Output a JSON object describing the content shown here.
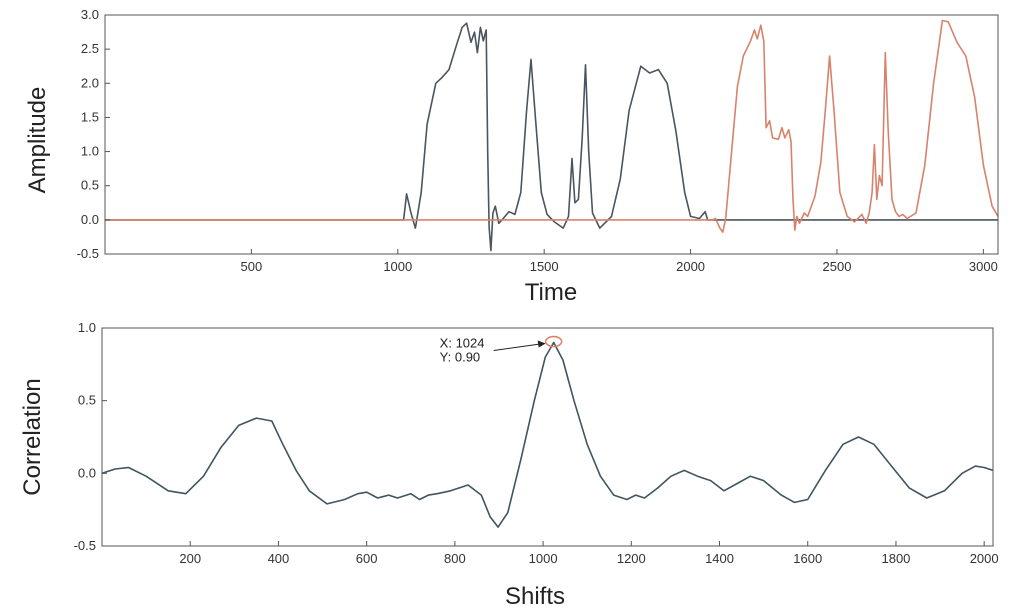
{
  "chart_data": [
    {
      "type": "line",
      "xlabel": "Time",
      "ylabel": "Amplitude",
      "xlim": [
        0,
        3050
      ],
      "ylim": [
        -0.5,
        3.0
      ],
      "xticks": [
        500,
        1000,
        1500,
        2000,
        2500,
        3000
      ],
      "yticks": [
        -0.5,
        0.0,
        0.5,
        1.0,
        1.5,
        2.0,
        2.5,
        3.0
      ],
      "ytick_labels": [
        "-0.5",
        "0.0",
        "0.5",
        "1.0",
        "1.5",
        "2.0",
        "2.5",
        "3.0"
      ],
      "grid": false,
      "series": [
        {
          "color": "#4a5560",
          "points": [
            [
              0,
              0
            ],
            [
              1020,
              0
            ],
            [
              1030,
              0.38
            ],
            [
              1045,
              0.1
            ],
            [
              1060,
              -0.12
            ],
            [
              1080,
              0.4
            ],
            [
              1100,
              1.4
            ],
            [
              1130,
              2.0
            ],
            [
              1150,
              2.08
            ],
            [
              1175,
              2.2
            ],
            [
              1200,
              2.55
            ],
            [
              1220,
              2.82
            ],
            [
              1235,
              2.88
            ],
            [
              1250,
              2.6
            ],
            [
              1262,
              2.75
            ],
            [
              1272,
              2.45
            ],
            [
              1282,
              2.82
            ],
            [
              1292,
              2.62
            ],
            [
              1302,
              2.78
            ],
            [
              1307,
              1.0
            ],
            [
              1312,
              -0.1
            ],
            [
              1318,
              -0.45
            ],
            [
              1325,
              0.1
            ],
            [
              1333,
              0.2
            ],
            [
              1345,
              -0.05
            ],
            [
              1360,
              0.02
            ],
            [
              1380,
              0.12
            ],
            [
              1400,
              0.08
            ],
            [
              1420,
              0.4
            ],
            [
              1440,
              1.6
            ],
            [
              1455,
              2.35
            ],
            [
              1470,
              1.5
            ],
            [
              1490,
              0.4
            ],
            [
              1510,
              0.08
            ],
            [
              1535,
              -0.03
            ],
            [
              1565,
              -0.12
            ],
            [
              1583,
              0.05
            ],
            [
              1595,
              0.9
            ],
            [
              1605,
              0.25
            ],
            [
              1617,
              0.3
            ],
            [
              1630,
              1.2
            ],
            [
              1641,
              2.27
            ],
            [
              1652,
              1.0
            ],
            [
              1665,
              0.1
            ],
            [
              1690,
              -0.12
            ],
            [
              1730,
              0.05
            ],
            [
              1760,
              0.6
            ],
            [
              1790,
              1.6
            ],
            [
              1830,
              2.25
            ],
            [
              1860,
              2.15
            ],
            [
              1890,
              2.2
            ],
            [
              1920,
              2.0
            ],
            [
              1950,
              1.3
            ],
            [
              1980,
              0.4
            ],
            [
              2000,
              0.05
            ],
            [
              2030,
              0.02
            ],
            [
              2050,
              0.12
            ],
            [
              2058,
              0.0
            ],
            [
              3050,
              0.0
            ]
          ]
        },
        {
          "color": "#d9826b",
          "points": [
            [
              0,
              0
            ],
            [
              2075,
              0.0
            ],
            [
              2085,
              0.02
            ],
            [
              2100,
              -0.12
            ],
            [
              2110,
              -0.18
            ],
            [
              2120,
              0.02
            ],
            [
              2140,
              1.0
            ],
            [
              2160,
              1.95
            ],
            [
              2180,
              2.4
            ],
            [
              2205,
              2.62
            ],
            [
              2218,
              2.78
            ],
            [
              2228,
              2.65
            ],
            [
              2240,
              2.85
            ],
            [
              2250,
              2.62
            ],
            [
              2258,
              1.35
            ],
            [
              2270,
              1.45
            ],
            [
              2280,
              1.2
            ],
            [
              2300,
              1.18
            ],
            [
              2312,
              1.35
            ],
            [
              2322,
              1.2
            ],
            [
              2335,
              1.32
            ],
            [
              2343,
              1.15
            ],
            [
              2350,
              0.3
            ],
            [
              2356,
              -0.15
            ],
            [
              2363,
              0.05
            ],
            [
              2372,
              -0.05
            ],
            [
              2388,
              0.1
            ],
            [
              2400,
              0.05
            ],
            [
              2425,
              0.35
            ],
            [
              2445,
              0.85
            ],
            [
              2460,
              1.6
            ],
            [
              2475,
              2.4
            ],
            [
              2490,
              1.6
            ],
            [
              2510,
              0.4
            ],
            [
              2535,
              0.05
            ],
            [
              2560,
              -0.03
            ],
            [
              2585,
              0.08
            ],
            [
              2600,
              -0.05
            ],
            [
              2610,
              0.1
            ],
            [
              2620,
              0.4
            ],
            [
              2628,
              1.1
            ],
            [
              2636,
              0.3
            ],
            [
              2645,
              0.65
            ],
            [
              2654,
              0.5
            ],
            [
              2665,
              2.45
            ],
            [
              2675,
              1.3
            ],
            [
              2688,
              0.3
            ],
            [
              2700,
              0.12
            ],
            [
              2712,
              0.05
            ],
            [
              2725,
              0.08
            ],
            [
              2740,
              0.02
            ],
            [
              2770,
              0.1
            ],
            [
              2800,
              0.8
            ],
            [
              2830,
              2.0
            ],
            [
              2860,
              2.92
            ],
            [
              2880,
              2.9
            ],
            [
              2910,
              2.6
            ],
            [
              2940,
              2.4
            ],
            [
              2970,
              1.8
            ],
            [
              3000,
              0.8
            ],
            [
              3030,
              0.2
            ],
            [
              3050,
              0.05
            ]
          ]
        }
      ]
    },
    {
      "type": "line",
      "xlabel": "Shifts",
      "ylabel": "Correlation",
      "xlim": [
        0,
        2020
      ],
      "ylim": [
        -0.5,
        1.0
      ],
      "xticks": [
        200,
        400,
        600,
        800,
        1000,
        1200,
        1400,
        1600,
        1800,
        2000
      ],
      "yticks": [
        -0.5,
        0.0,
        0.5,
        1.0
      ],
      "ytick_labels": [
        "-0.5",
        "0.0",
        "0.5",
        "1.0"
      ],
      "grid": false,
      "annotation": {
        "x_label": "X: 1024",
        "y_label": "Y:  0.90",
        "x": 1024,
        "y": 0.9
      },
      "series": [
        {
          "color": "#3f5560",
          "points": [
            [
              0,
              0.0
            ],
            [
              30,
              0.03
            ],
            [
              60,
              0.04
            ],
            [
              100,
              -0.02
            ],
            [
              150,
              -0.12
            ],
            [
              190,
              -0.14
            ],
            [
              230,
              -0.02
            ],
            [
              270,
              0.18
            ],
            [
              310,
              0.33
            ],
            [
              350,
              0.38
            ],
            [
              385,
              0.36
            ],
            [
              410,
              0.2
            ],
            [
              440,
              0.02
            ],
            [
              470,
              -0.12
            ],
            [
              510,
              -0.21
            ],
            [
              550,
              -0.18
            ],
            [
              580,
              -0.14
            ],
            [
              600,
              -0.13
            ],
            [
              625,
              -0.17
            ],
            [
              650,
              -0.15
            ],
            [
              670,
              -0.17
            ],
            [
              700,
              -0.14
            ],
            [
              720,
              -0.18
            ],
            [
              740,
              -0.15
            ],
            [
              760,
              -0.14
            ],
            [
              790,
              -0.12
            ],
            [
              830,
              -0.08
            ],
            [
              860,
              -0.15
            ],
            [
              880,
              -0.3
            ],
            [
              898,
              -0.37
            ],
            [
              920,
              -0.27
            ],
            [
              950,
              0.1
            ],
            [
              980,
              0.5
            ],
            [
              1005,
              0.8
            ],
            [
              1024,
              0.9
            ],
            [
              1045,
              0.78
            ],
            [
              1070,
              0.5
            ],
            [
              1100,
              0.2
            ],
            [
              1130,
              -0.02
            ],
            [
              1160,
              -0.15
            ],
            [
              1190,
              -0.18
            ],
            [
              1210,
              -0.15
            ],
            [
              1230,
              -0.17
            ],
            [
              1260,
              -0.1
            ],
            [
              1290,
              -0.02
            ],
            [
              1320,
              0.02
            ],
            [
              1350,
              -0.02
            ],
            [
              1380,
              -0.05
            ],
            [
              1410,
              -0.12
            ],
            [
              1440,
              -0.07
            ],
            [
              1470,
              -0.02
            ],
            [
              1500,
              -0.05
            ],
            [
              1540,
              -0.15
            ],
            [
              1570,
              -0.2
            ],
            [
              1600,
              -0.18
            ],
            [
              1640,
              0.02
            ],
            [
              1680,
              0.2
            ],
            [
              1715,
              0.25
            ],
            [
              1750,
              0.2
            ],
            [
              1790,
              0.05
            ],
            [
              1830,
              -0.1
            ],
            [
              1870,
              -0.17
            ],
            [
              1910,
              -0.12
            ],
            [
              1950,
              0.0
            ],
            [
              1980,
              0.05
            ],
            [
              2000,
              0.04
            ],
            [
              2020,
              0.02
            ]
          ]
        }
      ]
    }
  ]
}
